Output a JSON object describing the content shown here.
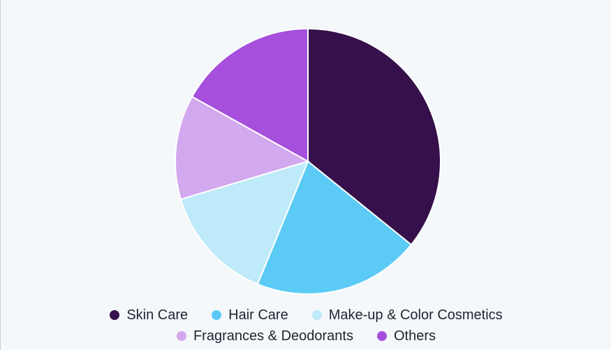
{
  "chart_data": {
    "type": "pie",
    "title": "",
    "legend_placement": "bottom",
    "slices": [
      {
        "label": "Skin Care",
        "value": 35.8,
        "color": "#35104a"
      },
      {
        "label": "Hair Care",
        "value": 20.4,
        "color": "#5bcbf5"
      },
      {
        "label": "Make-up & Color Cosmetics",
        "value": 14.2,
        "color": "#beeaf9"
      },
      {
        "label": "Fragrances & Deodorants",
        "value": 12.7,
        "color": "#d2a8ee"
      },
      {
        "label": "Others",
        "value": 16.9,
        "color": "#a64fdc"
      }
    ]
  }
}
